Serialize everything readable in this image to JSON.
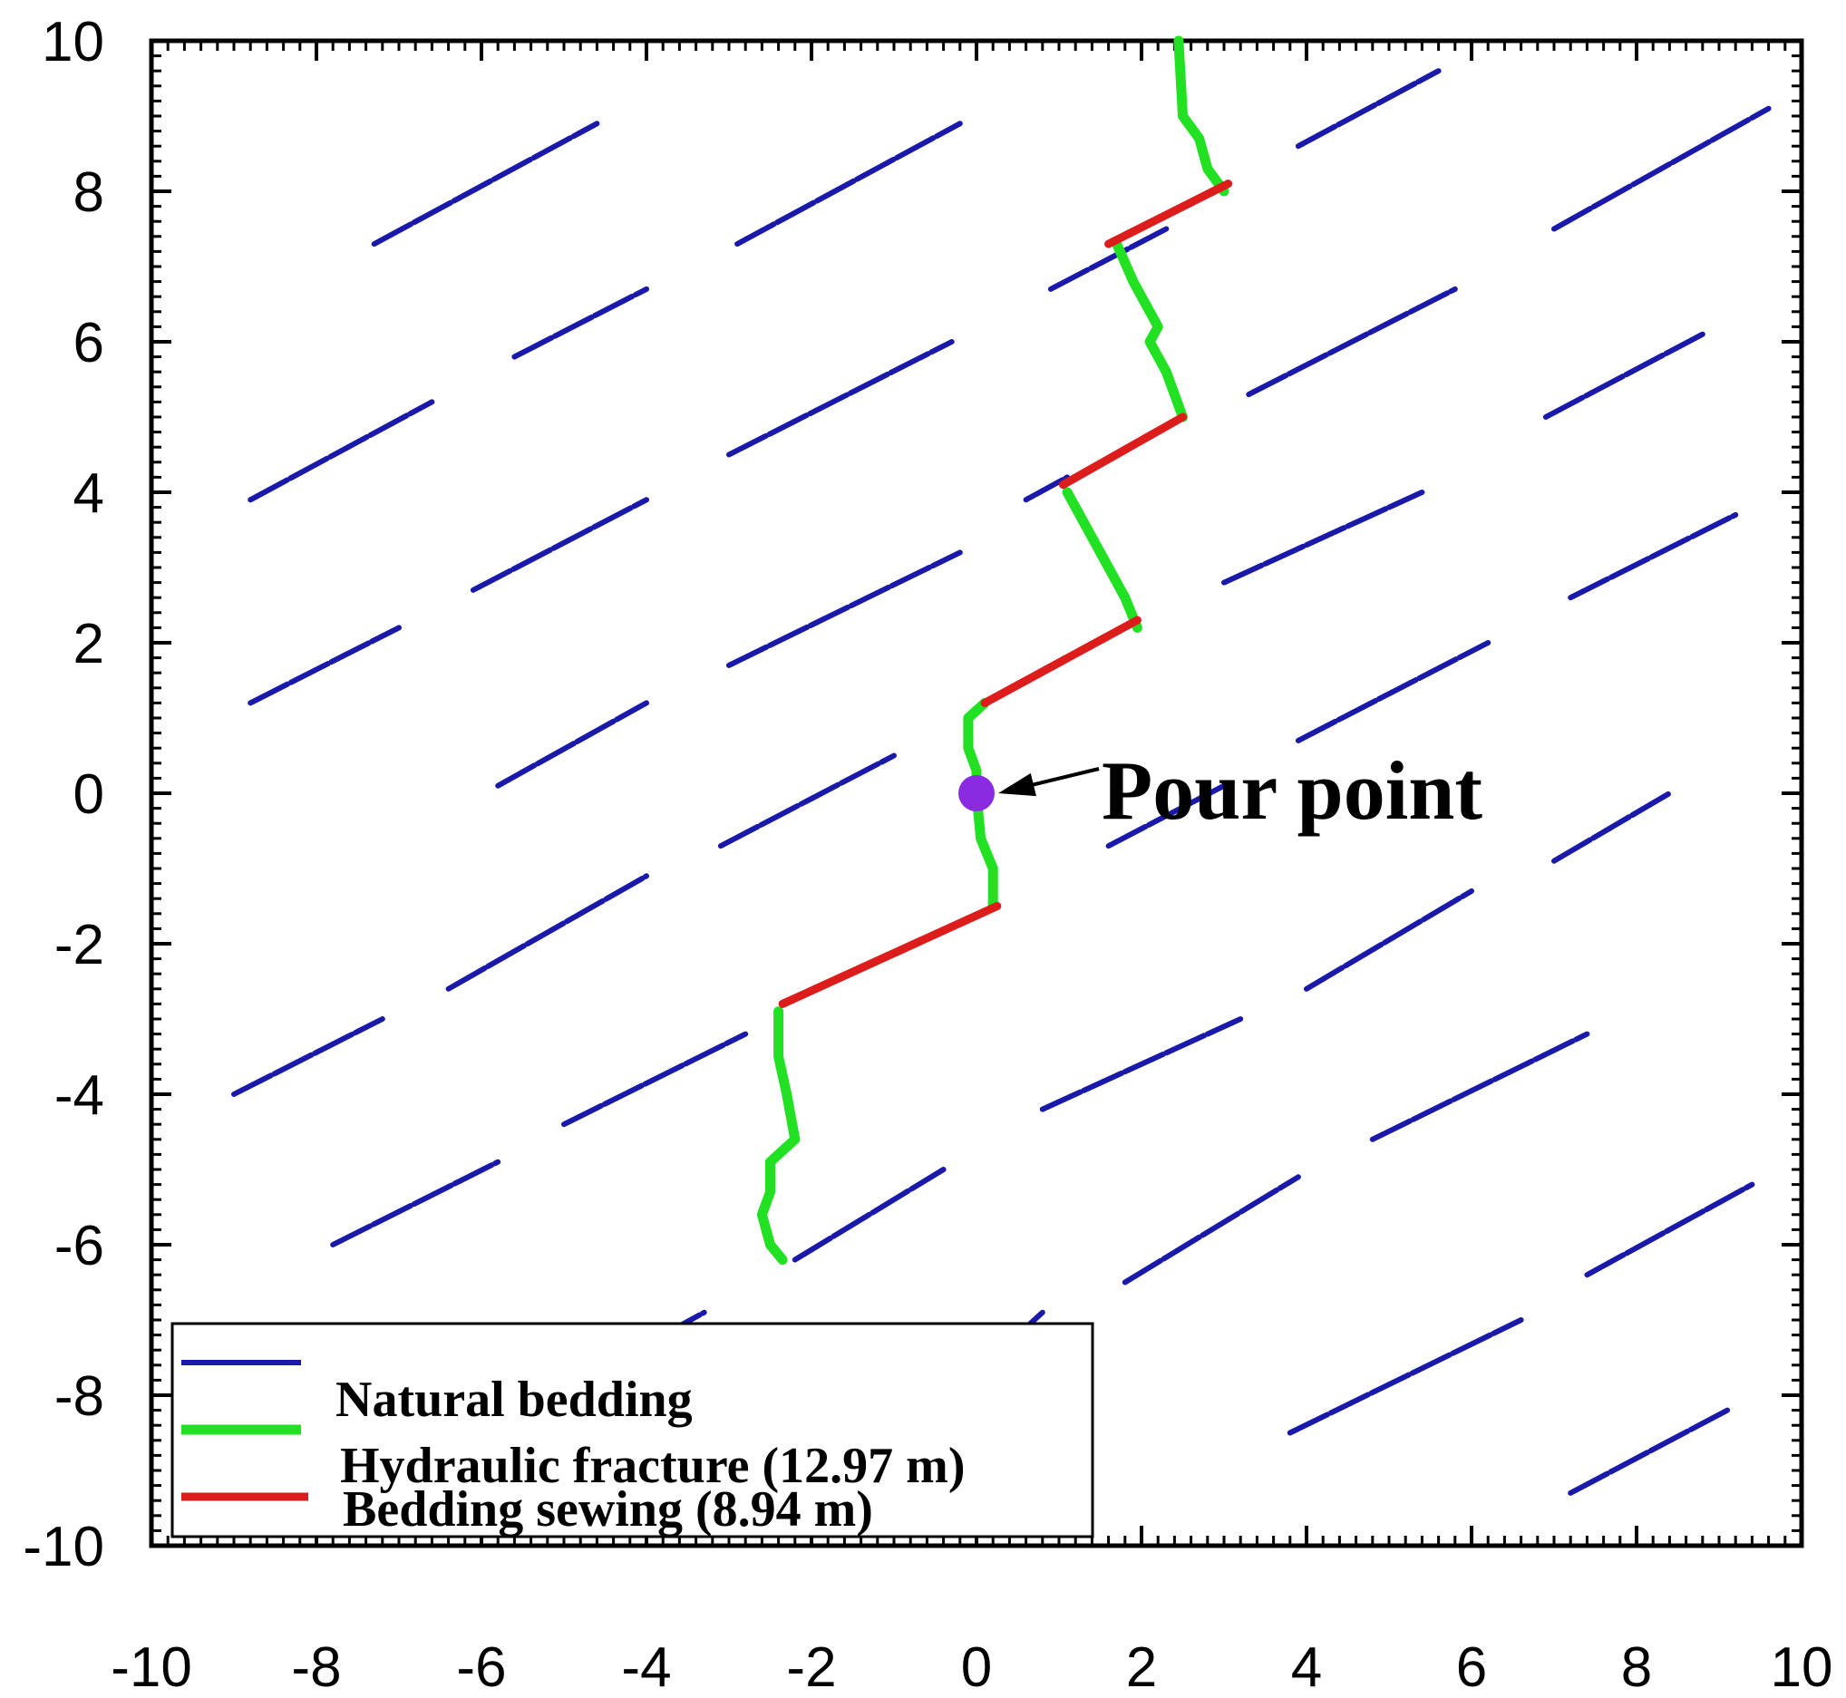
{
  "chart_data": {
    "type": "line",
    "title": "",
    "xlabel": "",
    "ylabel": "",
    "xlim": [
      -10,
      10
    ],
    "ylim": [
      -10,
      10
    ],
    "x_ticks": [
      "-10",
      "-8",
      "-6",
      "-4",
      "-2",
      "0",
      "2",
      "4",
      "6",
      "8",
      "10"
    ],
    "y_ticks": [
      "10",
      "8",
      "6",
      "4",
      "2",
      "0",
      "-2",
      "-4",
      "-6",
      "-8",
      "-10"
    ],
    "grid": false,
    "legend_position": "bottom-left",
    "colors": {
      "natural_bedding": "#1a1aaa",
      "hydraulic_fracture": "#22e022",
      "bedding_sewing": "#dd1c1c",
      "pour_point": "#8a2be2"
    },
    "series": [
      {
        "name": "Natural bedding",
        "segments": [
          [
            [
              -7.3,
              7.3
            ],
            [
              -4.6,
              8.9
            ]
          ],
          [
            [
              -2.9,
              7.3
            ],
            [
              -0.2,
              8.9
            ]
          ],
          [
            [
              3.9,
              8.6
            ],
            [
              5.6,
              9.6
            ]
          ],
          [
            [
              7.0,
              7.5
            ],
            [
              9.6,
              9.1
            ]
          ],
          [
            [
              -5.6,
              5.8
            ],
            [
              -4.0,
              6.7
            ]
          ],
          [
            [
              0.9,
              6.7
            ],
            [
              2.3,
              7.5
            ]
          ],
          [
            [
              -8.8,
              3.9
            ],
            [
              -6.6,
              5.2
            ]
          ],
          [
            [
              -3.0,
              4.5
            ],
            [
              -0.3,
              6.0
            ]
          ],
          [
            [
              3.3,
              5.3
            ],
            [
              5.8,
              6.7
            ]
          ],
          [
            [
              6.9,
              5.0
            ],
            [
              8.8,
              6.1
            ]
          ],
          [
            [
              0.6,
              3.9
            ],
            [
              1.1,
              4.2
            ]
          ],
          [
            [
              -6.1,
              2.7
            ],
            [
              -4.0,
              3.9
            ]
          ],
          [
            [
              -3.0,
              1.7
            ],
            [
              -0.2,
              3.2
            ]
          ],
          [
            [
              3.0,
              2.8
            ],
            [
              5.4,
              4.0
            ]
          ],
          [
            [
              7.2,
              2.6
            ],
            [
              9.2,
              3.7
            ]
          ],
          [
            [
              -8.8,
              1.2
            ],
            [
              -7.0,
              2.2
            ]
          ],
          [
            [
              -5.8,
              0.1
            ],
            [
              -4.0,
              1.2
            ]
          ],
          [
            [
              3.9,
              0.7
            ],
            [
              6.2,
              2.0
            ]
          ],
          [
            [
              -3.1,
              -0.7
            ],
            [
              -1.0,
              0.5
            ]
          ],
          [
            [
              1.6,
              -0.7
            ],
            [
              3.0,
              0.1
            ]
          ],
          [
            [
              7.0,
              -0.9
            ],
            [
              8.4,
              0.0
            ]
          ],
          [
            [
              -6.4,
              -2.6
            ],
            [
              -4.0,
              -1.1
            ]
          ],
          [
            [
              4.0,
              -2.6
            ],
            [
              6.0,
              -1.3
            ]
          ],
          [
            [
              -9.0,
              -4.0
            ],
            [
              -7.2,
              -3.0
            ]
          ],
          [
            [
              -5.0,
              -4.4
            ],
            [
              -2.8,
              -3.2
            ]
          ],
          [
            [
              0.8,
              -4.2
            ],
            [
              3.2,
              -3.0
            ]
          ],
          [
            [
              4.8,
              -4.6
            ],
            [
              7.4,
              -3.2
            ]
          ],
          [
            [
              -7.8,
              -6.0
            ],
            [
              -5.8,
              -4.9
            ]
          ],
          [
            [
              -2.2,
              -6.2
            ],
            [
              -0.4,
              -5.0
            ]
          ],
          [
            [
              1.8,
              -6.5
            ],
            [
              3.9,
              -5.1
            ]
          ],
          [
            [
              7.4,
              -6.4
            ],
            [
              9.4,
              -5.2
            ]
          ],
          [
            [
              -3.8,
              -7.2
            ],
            [
              -3.3,
              -6.9
            ]
          ],
          [
            [
              0.6,
              -7.1
            ],
            [
              0.8,
              -6.9
            ]
          ],
          [
            [
              3.8,
              -8.5
            ],
            [
              6.6,
              -7.0
            ]
          ],
          [
            [
              7.2,
              -9.3
            ],
            [
              9.1,
              -8.2
            ]
          ]
        ]
      },
      {
        "name": "Hydraulic fracture (12.97 m)",
        "value_label": "12.97 m",
        "segments": [
          [
            [
              2.45,
              10.0
            ],
            [
              2.5,
              9.0
            ],
            [
              2.7,
              8.7
            ],
            [
              2.8,
              8.3
            ],
            [
              3.0,
              8.0
            ]
          ],
          [
            [
              1.7,
              7.3
            ],
            [
              1.9,
              6.8
            ],
            [
              2.2,
              6.2
            ],
            [
              2.1,
              6.0
            ],
            [
              2.3,
              5.6
            ],
            [
              2.5,
              5.0
            ]
          ],
          [
            [
              1.1,
              4.0
            ],
            [
              1.3,
              3.6
            ],
            [
              1.6,
              3.0
            ],
            [
              1.8,
              2.6
            ],
            [
              1.95,
              2.2
            ]
          ],
          [
            [
              0.1,
              1.2
            ],
            [
              -0.1,
              1.0
            ],
            [
              -0.1,
              0.6
            ],
            [
              0.0,
              0.3
            ],
            [
              0.0,
              0.0
            ],
            [
              0.05,
              -0.6
            ],
            [
              0.2,
              -1.0
            ],
            [
              0.2,
              -1.5
            ]
          ],
          [
            [
              -2.4,
              -2.9
            ],
            [
              -2.4,
              -3.5
            ],
            [
              -2.3,
              -4.0
            ],
            [
              -2.2,
              -4.6
            ],
            [
              -2.5,
              -4.9
            ],
            [
              -2.5,
              -5.3
            ],
            [
              -2.6,
              -5.6
            ],
            [
              -2.5,
              -6.0
            ],
            [
              -2.35,
              -6.2
            ]
          ]
        ]
      },
      {
        "name": "Bedding sewing (8.94 m)",
        "value_label": "8.94 m",
        "segments": [
          [
            [
              1.6,
              7.3
            ],
            [
              3.05,
              8.1
            ]
          ],
          [
            [
              1.05,
              4.1
            ],
            [
              2.5,
              5.0
            ]
          ],
          [
            [
              0.1,
              1.2
            ],
            [
              1.95,
              2.3
            ]
          ],
          [
            [
              -2.35,
              -2.8
            ],
            [
              0.25,
              -1.5
            ]
          ]
        ]
      }
    ],
    "pour_point": {
      "x": 0.0,
      "y": 0.0
    },
    "annotation": {
      "text": "Pour point",
      "arrow_to": [
        0.0,
        0.0
      ]
    }
  }
}
